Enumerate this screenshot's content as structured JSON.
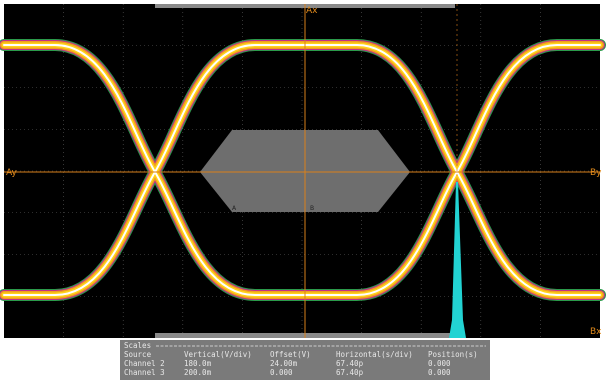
{
  "markers": {
    "ax": "Ax",
    "ay": "Ay",
    "by": "By",
    "bx": "Bx"
  },
  "mask_labels": [
    "A",
    "B"
  ],
  "scales": {
    "title": "Scales",
    "columns": [
      "Source",
      "Vertical(V/div)",
      "Offset(V)",
      "Horizontal(s/div)",
      "Position(s)"
    ],
    "rows": [
      [
        "Channel 2",
        "180.0m",
        "24.00m",
        "67.40p",
        "0.000"
      ],
      [
        "Channel 3",
        "200.0m",
        "0.000",
        "67.40p",
        "0.000"
      ]
    ]
  }
}
